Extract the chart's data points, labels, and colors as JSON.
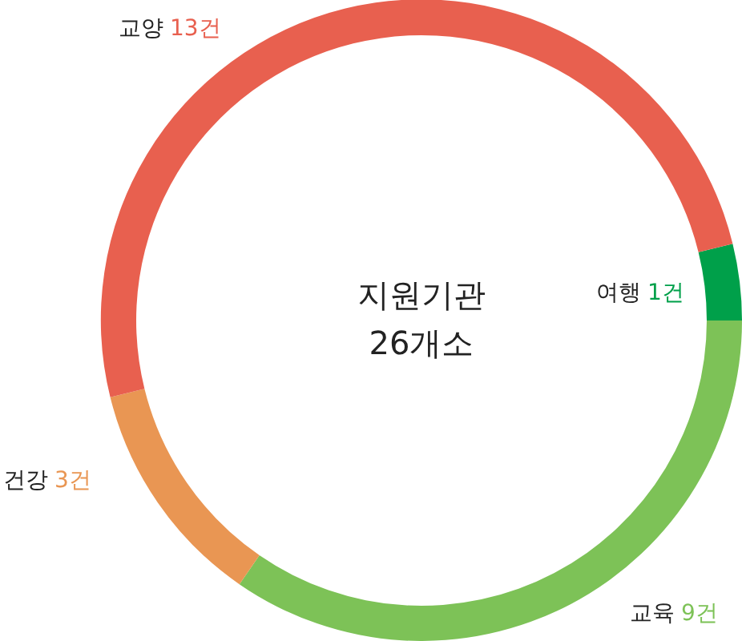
{
  "chart_data": {
    "type": "donut",
    "categories": [
      "여행",
      "교육",
      "건강",
      "교양"
    ],
    "values": [
      1,
      9,
      3,
      13
    ],
    "colors": [
      "#00a04a",
      "#7dc257",
      "#e99653",
      "#e8604f"
    ],
    "value_labels": [
      "1건",
      "9건",
      "3건",
      "13건"
    ],
    "annotations": [
      "지원기관",
      "26개소"
    ]
  }
}
